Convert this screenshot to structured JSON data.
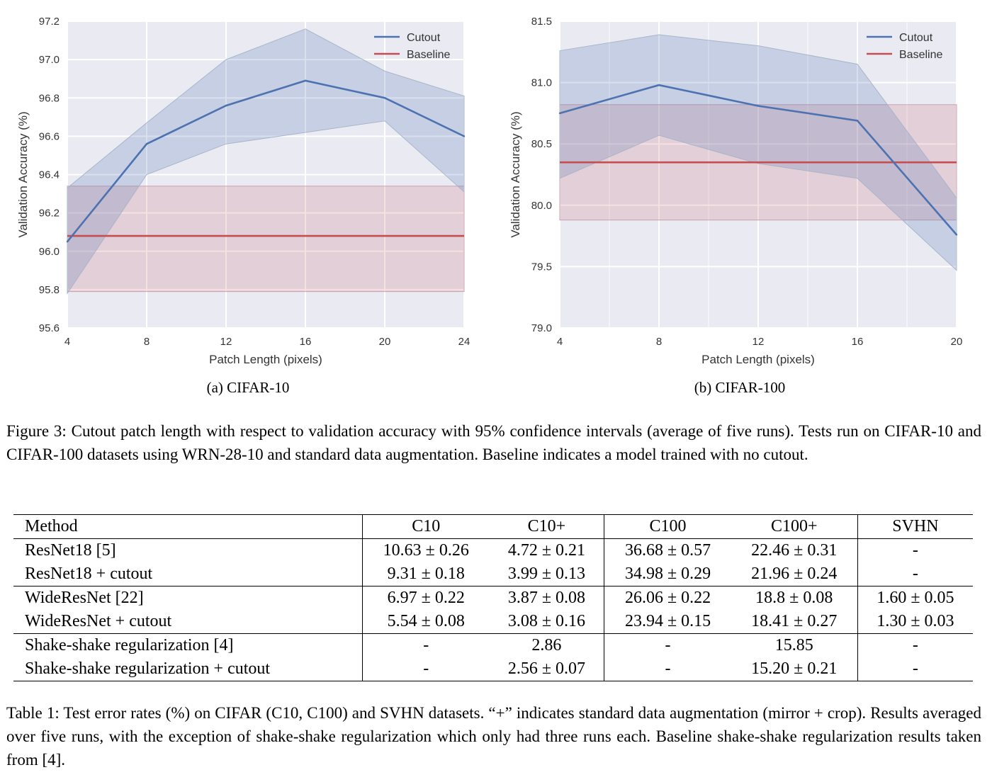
{
  "chart_data": [
    {
      "type": "line",
      "subcaption": "(a) CIFAR-10",
      "xlabel": "Patch Length (pixels)",
      "ylabel": "Validation Accuracy (%)",
      "xlim": [
        4,
        24
      ],
      "ylim": [
        95.6,
        97.2
      ],
      "xticks": [
        "4",
        "8",
        "12",
        "16",
        "20",
        "24"
      ],
      "yticks": [
        "95.6",
        "95.8",
        "96.0",
        "96.2",
        "96.4",
        "96.6",
        "96.8",
        "97.0",
        "97.2"
      ],
      "grid": true,
      "legend_position": "top-right",
      "series": [
        {
          "name": "Cutout",
          "color": "#4C72B0",
          "x": [
            4,
            8,
            12,
            16,
            20,
            24
          ],
          "y": [
            96.05,
            96.56,
            96.76,
            96.89,
            96.8,
            96.6
          ],
          "ci_upper": [
            96.33,
            96.67,
            97.0,
            97.16,
            96.94,
            96.81
          ],
          "ci_lower": [
            95.78,
            96.4,
            96.56,
            96.62,
            96.68,
            96.31
          ]
        },
        {
          "name": "Baseline",
          "color": "#C44E52",
          "x": [
            4,
            24
          ],
          "y": [
            96.08,
            96.08
          ],
          "ci_upper": [
            96.34,
            96.34
          ],
          "ci_lower": [
            95.79,
            95.79
          ]
        }
      ]
    },
    {
      "type": "line",
      "subcaption": "(b) CIFAR-100",
      "xlabel": "Patch Length (pixels)",
      "ylabel": "Validation Accuracy (%)",
      "xlim": [
        4,
        20
      ],
      "ylim": [
        79.0,
        81.5
      ],
      "xticks": [
        "4",
        "8",
        "12",
        "16",
        "20"
      ],
      "yticks": [
        "79.0",
        "79.5",
        "80.0",
        "80.5",
        "81.0",
        "81.5"
      ],
      "grid": true,
      "legend_position": "top-right",
      "series": [
        {
          "name": "Cutout",
          "color": "#4C72B0",
          "x": [
            4,
            8,
            12,
            16,
            20
          ],
          "y": [
            80.75,
            80.98,
            80.81,
            80.69,
            79.76
          ],
          "ci_upper": [
            81.26,
            81.39,
            81.3,
            81.15,
            80.06
          ],
          "ci_lower": [
            80.22,
            80.57,
            80.34,
            80.22,
            79.47
          ]
        },
        {
          "name": "Baseline",
          "color": "#C44E52",
          "x": [
            4,
            20
          ],
          "y": [
            80.35,
            80.35
          ],
          "ci_upper": [
            80.82,
            80.82
          ],
          "ci_lower": [
            79.88,
            79.88
          ]
        }
      ]
    }
  ],
  "figure_caption": "Figure 3: Cutout patch length with respect to validation accuracy with 95% confidence intervals (average of five runs). Tests run on CIFAR-10 and CIFAR-100 datasets using WRN-28-10 and standard data augmentation. Baseline indicates a model trained with no cutout.",
  "table": {
    "headers": [
      "Method",
      "C10",
      "C10+",
      "C100",
      "C100+",
      "SVHN"
    ],
    "rows": [
      {
        "method": "ResNet18 [5]",
        "c10": "10.63 ± 0.26",
        "c10p": "4.72 ± 0.21",
        "c100": "36.68 ± 0.57",
        "c100p": "22.46 ± 0.31",
        "svhn": "-"
      },
      {
        "method": "ResNet18 + cutout",
        "c10": "9.31 ± 0.18",
        "c10p": "3.99 ± 0.13",
        "c100": "34.98 ± 0.29",
        "c100p": "21.96 ± 0.24",
        "svhn": "-"
      },
      {
        "method": "WideResNet [22]",
        "c10": "6.97 ± 0.22",
        "c10p": "3.87 ± 0.08",
        "c100": "26.06 ± 0.22",
        "c100p": "18.8 ± 0.08",
        "svhn": "1.60 ± 0.05"
      },
      {
        "method": "WideResNet + cutout",
        "c10": "5.54 ± 0.08",
        "c10p": "3.08 ± 0.16",
        "c100": "23.94 ± 0.15",
        "c100p": "18.41 ± 0.27",
        "svhn": "1.30 ± 0.03"
      },
      {
        "method": "Shake-shake regularization [4]",
        "c10": "-",
        "c10p": "2.86",
        "c100": "-",
        "c100p": "15.85",
        "svhn": "-"
      },
      {
        "method": "Shake-shake regularization + cutout",
        "c10": "-",
        "c10p": "2.56 ± 0.07",
        "c100": "-",
        "c100p": "15.20 ± 0.21",
        "svhn": "-"
      }
    ]
  },
  "table_caption": "Table 1: Test error rates (%) on CIFAR (C10, C100) and SVHN datasets. “+” indicates standard data augmentation (mirror + crop). Results averaged over five runs, with the exception of shake-shake regularization which only had three runs each. Baseline shake-shake regularization results taken from [4]."
}
